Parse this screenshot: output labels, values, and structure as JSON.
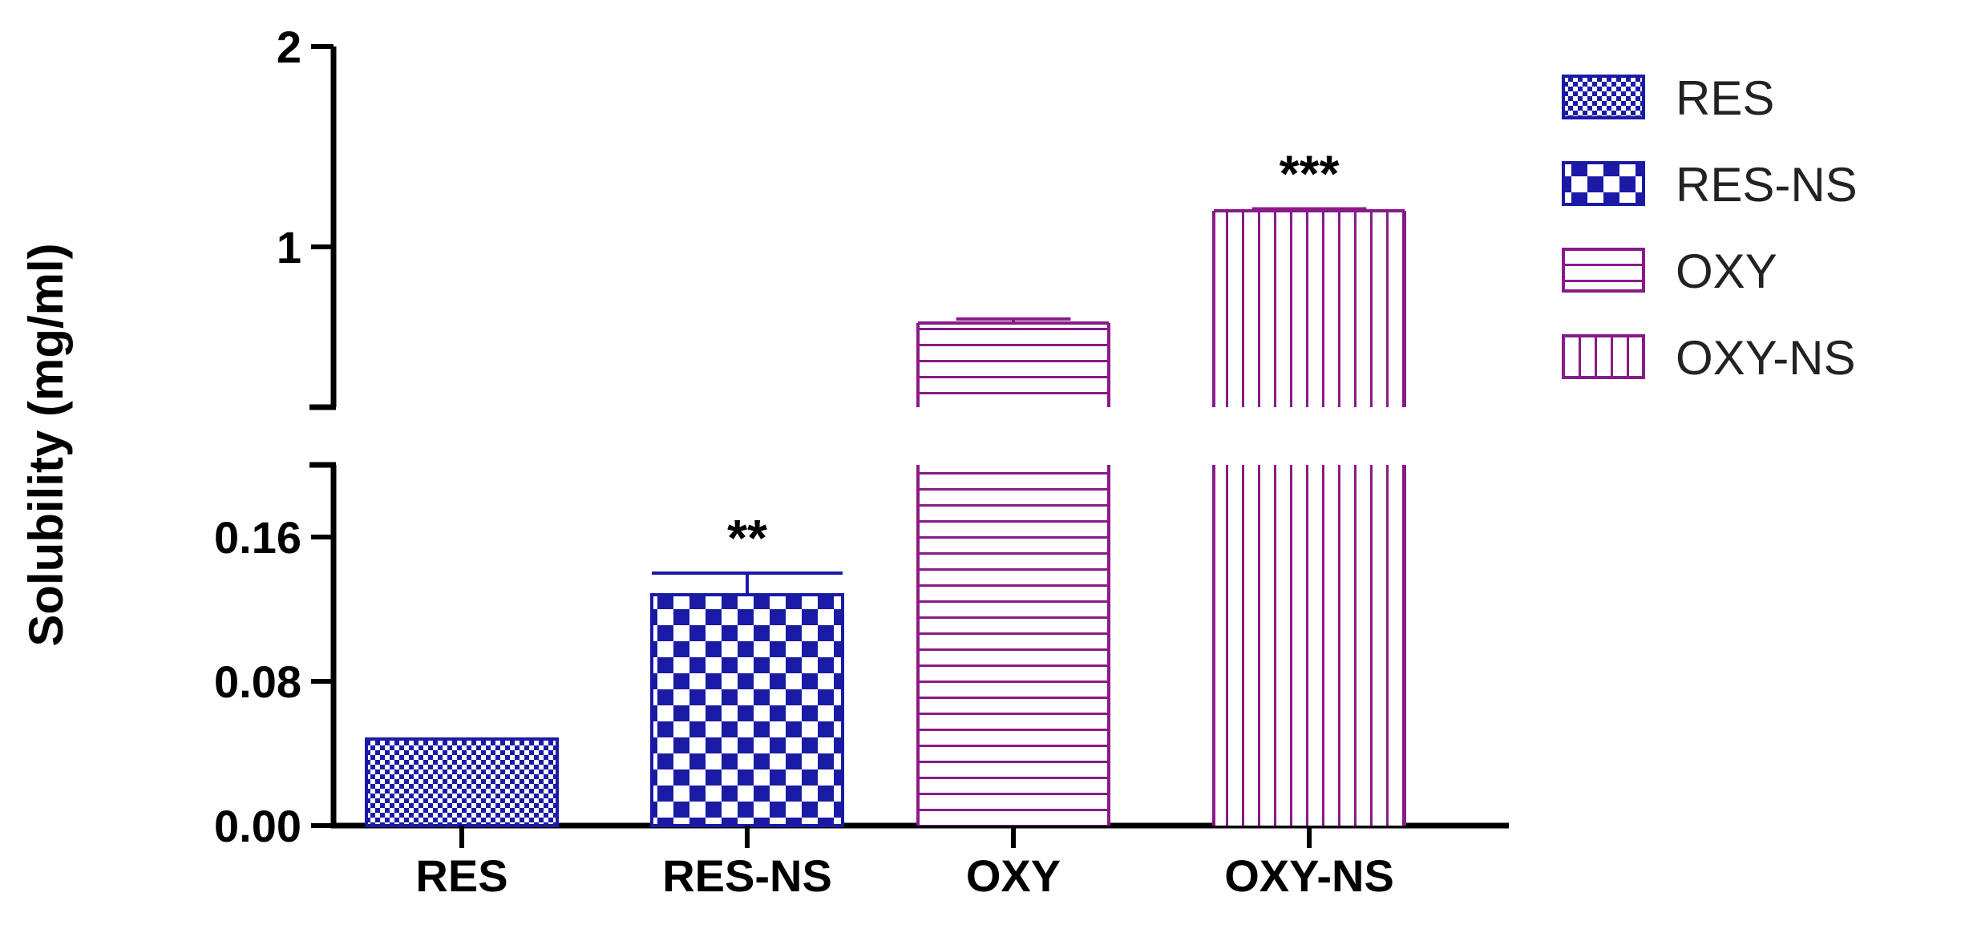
{
  "chart_data": {
    "type": "bar",
    "ylabel": "Solubility (mg/ml)",
    "xlabel": "",
    "categories": [
      "RES",
      "RES-NS",
      "OXY",
      "OXY-NS"
    ],
    "values": [
      0.048,
      0.128,
      0.62,
      1.18
    ],
    "errors": [
      0.0,
      0.012,
      0.02,
      0.01
    ],
    "annotations": [
      "",
      "**",
      "",
      "***"
    ],
    "legend": {
      "placement": "right",
      "entries": [
        "RES",
        "RES-NS",
        "OXY",
        "OXY-NS"
      ]
    },
    "patterns": [
      "fine-checker",
      "checker",
      "horizontal-lines",
      "vertical-lines"
    ],
    "colors": [
      "#1a1aa6",
      "#1a1aa6",
      "#8a1a8a",
      "#8a1a8a"
    ],
    "axis_break": {
      "lower_max": 0.2,
      "upper_min": 0.2
    },
    "lower_segment": {
      "ylim": [
        0,
        0.2
      ],
      "ticks": [
        "0.00",
        "0.08",
        "0.16"
      ],
      "tick_values": [
        0,
        0.08,
        0.16
      ]
    },
    "upper_segment": {
      "ylim": [
        0.2,
        2
      ],
      "ticks": [
        "1",
        "2"
      ],
      "tick_values": [
        1,
        2
      ]
    },
    "grid": false
  }
}
